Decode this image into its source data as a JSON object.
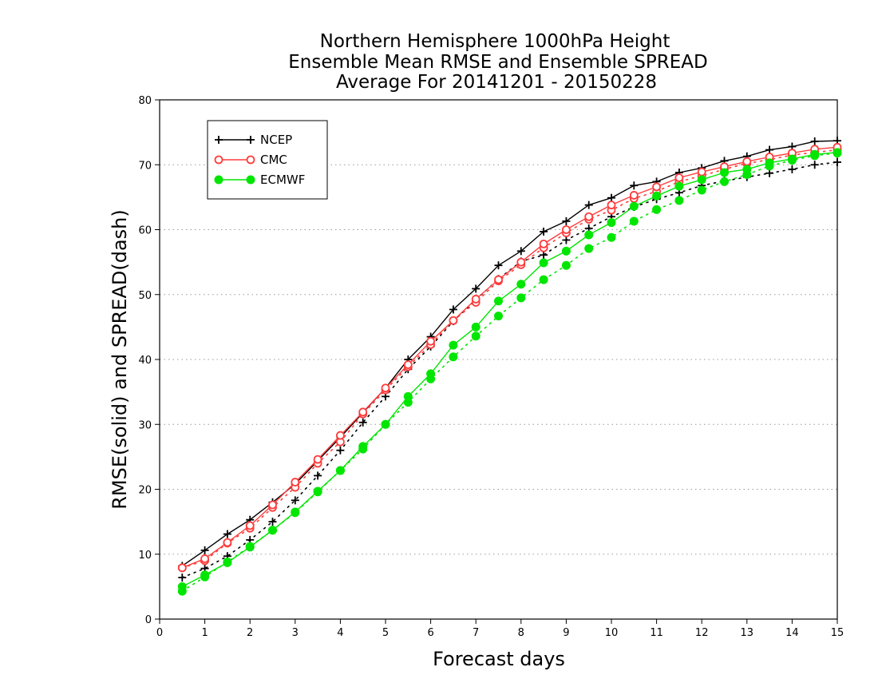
{
  "chart_data": {
    "type": "line",
    "title": [
      "Northern Hemisphere 1000hPa Height",
      "Ensemble Mean RMSE and Ensemble SPREAD",
      "Average For 20141201 - 20150228"
    ],
    "xlabel": "Forecast days",
    "ylabel": "RMSE(solid) and SPREAD(dash)",
    "xlim": [
      0,
      15
    ],
    "ylim": [
      0,
      80
    ],
    "xticks": [
      0,
      1,
      2,
      3,
      4,
      5,
      6,
      7,
      8,
      9,
      10,
      11,
      12,
      13,
      14,
      15
    ],
    "yticks": [
      0,
      10,
      20,
      30,
      40,
      50,
      60,
      70,
      80
    ],
    "grid": "horizontal dotted",
    "legend_position": "top-left",
    "x": [
      0.5,
      1,
      1.5,
      2,
      2.5,
      3,
      3.5,
      4,
      4.5,
      5,
      5.5,
      6,
      6.5,
      7,
      7.5,
      8,
      8.5,
      9,
      9.5,
      10,
      10.5,
      11,
      11.5,
      12,
      12.5,
      13,
      13.5,
      14,
      14.5,
      15
    ],
    "series": [
      {
        "name": "NCEP",
        "color": "#000000",
        "marker": "plus",
        "rmse": [
          8.2,
          10.6,
          13.1,
          15.3,
          18.0,
          20.8,
          24.4,
          28.0,
          31.8,
          35.6,
          40.0,
          43.5,
          47.7,
          50.9,
          54.5,
          56.7,
          59.7,
          61.3,
          63.8,
          64.9,
          66.8,
          67.4,
          68.8,
          69.5,
          70.6,
          71.3,
          72.3,
          72.8,
          73.6,
          73.7
        ],
        "spread": [
          6.4,
          7.8,
          9.7,
          12.2,
          15.0,
          18.3,
          22.1,
          26.0,
          30.3,
          34.3,
          38.5,
          42.0,
          45.9,
          49.2,
          52.4,
          55.1,
          56.1,
          58.4,
          60.2,
          62.0,
          63.5,
          64.7,
          65.7,
          66.8,
          67.5,
          68.1,
          68.7,
          69.3,
          70.0,
          70.4
        ]
      },
      {
        "name": "CMC",
        "color": "#ff3c3c",
        "marker": "open-circle",
        "rmse": [
          7.9,
          9.3,
          11.8,
          14.4,
          17.6,
          21.1,
          24.6,
          28.3,
          31.9,
          35.6,
          39.2,
          42.8,
          46.0,
          49.3,
          52.3,
          55.0,
          57.8,
          60.0,
          62.0,
          63.8,
          65.3,
          66.6,
          68.0,
          68.9,
          69.7,
          70.5,
          71.2,
          71.8,
          72.4,
          72.7
        ],
        "spread": [
          7.9,
          9.0,
          11.7,
          14.0,
          17.2,
          20.3,
          24.0,
          27.3,
          31.6,
          35.3,
          38.9,
          42.3,
          46.0,
          48.8,
          52.1,
          54.6,
          57.2,
          59.5,
          61.6,
          63.0,
          64.8,
          65.9,
          67.4,
          68.3,
          69.3,
          70.2,
          70.8,
          71.5,
          71.9,
          72.3
        ]
      },
      {
        "name": "ECMWF",
        "color": "#00e600",
        "marker": "filled-circle",
        "rmse": [
          5.0,
          6.8,
          8.7,
          11.1,
          13.7,
          16.5,
          19.7,
          22.9,
          26.6,
          30.0,
          34.3,
          37.8,
          42.2,
          45.0,
          49.0,
          51.6,
          54.9,
          56.7,
          59.2,
          61.1,
          63.6,
          65.2,
          66.7,
          67.7,
          68.8,
          69.3,
          70.3,
          70.9,
          71.6,
          71.9
        ],
        "spread": [
          4.3,
          6.5,
          8.8,
          11.2,
          13.7,
          16.4,
          19.6,
          22.9,
          26.2,
          30.0,
          33.4,
          37.0,
          40.4,
          43.6,
          46.7,
          49.5,
          52.3,
          54.5,
          57.1,
          58.8,
          61.3,
          63.1,
          64.5,
          66.1,
          67.4,
          68.5,
          69.8,
          70.7,
          71.4,
          71.8
        ]
      }
    ]
  }
}
